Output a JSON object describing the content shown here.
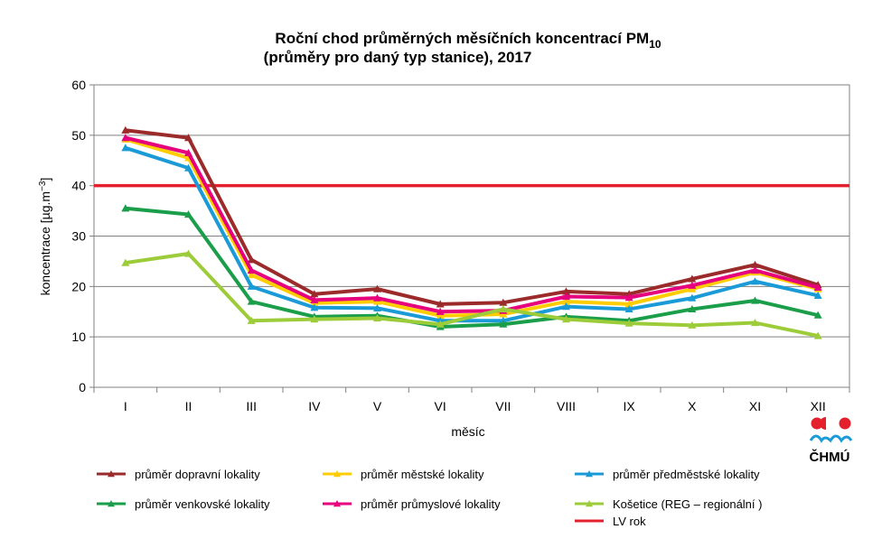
{
  "chart_data": {
    "type": "line",
    "title_line1": "Roční chod průměrných měsíčních koncentrací PM",
    "title_sub": "10",
    "title_line2": "(průměry pro daný typ stanice), 2017",
    "xlabel": "měsíc",
    "ylabel": "koncentrace [µg.m",
    "ylabel_sup": "−3",
    "ylabel_end": "]",
    "ylim": [
      0,
      60
    ],
    "yticks": [
      "0",
      "10",
      "20",
      "30",
      "40",
      "50",
      "60"
    ],
    "categories": [
      "I",
      "II",
      "III",
      "IV",
      "V",
      "VI",
      "VII",
      "VIII",
      "IX",
      "X",
      "XI",
      "XII"
    ],
    "grid": true,
    "legend_position": "bottom",
    "series": [
      {
        "name": "průměr dopravní lokality",
        "color": "#9b2a2a",
        "values": [
          51.0,
          49.5,
          25.3,
          18.5,
          19.5,
          16.5,
          16.8,
          19.0,
          18.5,
          21.5,
          24.3,
          20.3
        ]
      },
      {
        "name": "průměr městské lokality",
        "color": "#ffcc00",
        "values": [
          49.2,
          45.5,
          22.3,
          16.7,
          17.0,
          14.2,
          14.5,
          17.0,
          16.5,
          19.5,
          22.8,
          19.5
        ]
      },
      {
        "name": "průměr předměstské lokality",
        "color": "#1a9bd7",
        "values": [
          47.5,
          43.5,
          20.0,
          15.8,
          15.7,
          13.2,
          13.2,
          16.0,
          15.5,
          17.7,
          21.0,
          18.2
        ]
      },
      {
        "name": "průměr venkovské lokality",
        "color": "#1a9e4a",
        "values": [
          35.5,
          34.3,
          17.0,
          14.0,
          14.2,
          12.0,
          12.5,
          14.0,
          13.2,
          15.5,
          17.2,
          14.3
        ]
      },
      {
        "name": "průměr průmyslové lokality",
        "color": "#e6007e",
        "values": [
          49.5,
          46.5,
          23.2,
          17.3,
          17.7,
          15.0,
          15.2,
          18.0,
          17.8,
          20.2,
          23.2,
          19.8
        ]
      },
      {
        "name": "Košetice (REG – regionální )",
        "color": "#9dcc3a",
        "values": [
          24.7,
          26.5,
          13.2,
          13.5,
          13.7,
          12.5,
          15.5,
          13.5,
          12.7,
          12.3,
          12.8,
          10.2
        ]
      }
    ],
    "limit_line": {
      "name": "LV rok",
      "value": 40,
      "color": "#e3202c"
    }
  },
  "logo": {
    "text": "ČHMÚ",
    "colors": {
      "red": "#e3202c",
      "blue": "#1a9bd7"
    }
  }
}
